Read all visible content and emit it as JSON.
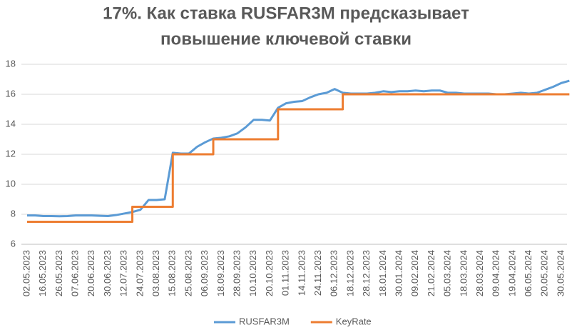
{
  "chart_data": {
    "type": "line",
    "title": [
      "17%. Как ставка RUSFAR3M предсказывает",
      "повышение ключевой ставки"
    ],
    "categories": [
      "02.05.2023",
      null,
      "16.05.2023",
      null,
      "26.05.2023",
      null,
      "07.06.2023",
      null,
      "20.06.2023",
      null,
      "30.06.2023",
      null,
      "12.07.2023",
      null,
      "24.07.2023",
      null,
      "03.08.2023",
      null,
      "15.08.2023",
      null,
      "25.08.2023",
      null,
      "06.09.2023",
      null,
      "18.09.2023",
      null,
      "28.09.2023",
      null,
      "10.10.2023",
      null,
      "20.10.2023",
      null,
      "01.11.2023",
      null,
      "14.11.2023",
      null,
      "24.11.2023",
      null,
      "06.12.2023",
      null,
      "18.12.2023",
      null,
      "28.12.2023",
      null,
      "18.01.2024",
      null,
      "30.01.2024",
      null,
      "09.02.2024",
      null,
      "21.02.2024",
      null,
      "05.03.2024",
      null,
      "18.03.2024",
      null,
      "28.03.2024",
      null,
      "09.04.2024",
      null,
      "19.04.2024",
      null,
      "06.05.2024",
      null,
      "20.05.2024",
      null,
      "30.05.2024",
      null
    ],
    "series": [
      {
        "name": "RUSFAR3M",
        "color": "#5b9bd5",
        "values": [
          7.92,
          7.92,
          7.88,
          7.88,
          7.87,
          7.88,
          7.92,
          7.92,
          7.92,
          7.9,
          7.88,
          7.95,
          8.05,
          8.15,
          8.3,
          8.95,
          8.95,
          9.0,
          12.1,
          12.05,
          12.05,
          12.5,
          12.8,
          13.05,
          13.1,
          13.2,
          13.4,
          13.8,
          14.3,
          14.3,
          14.25,
          15.1,
          15.4,
          15.5,
          15.55,
          15.8,
          16.0,
          16.1,
          16.35,
          16.1,
          16.05,
          16.05,
          16.05,
          16.1,
          16.2,
          16.15,
          16.2,
          16.2,
          16.25,
          16.2,
          16.25,
          16.25,
          16.1,
          16.1,
          16.05,
          16.05,
          16.05,
          16.05,
          16.0,
          16.0,
          16.05,
          16.1,
          16.05,
          16.1,
          16.3,
          16.5,
          16.75,
          16.9
        ]
      },
      {
        "name": "KeyRate",
        "color": "#ed7d31",
        "step": true,
        "values": [
          7.5,
          7.5,
          7.5,
          7.5,
          7.5,
          7.5,
          7.5,
          7.5,
          7.5,
          7.5,
          7.5,
          7.5,
          7.5,
          8.5,
          8.5,
          8.5,
          8.5,
          8.5,
          12,
          12,
          12,
          12,
          12,
          13,
          13,
          13,
          13,
          13,
          13,
          13,
          13,
          15,
          15,
          15,
          15,
          15,
          15,
          15,
          15,
          16,
          16,
          16,
          16,
          16,
          16,
          16,
          16,
          16,
          16,
          16,
          16,
          16,
          16,
          16,
          16,
          16,
          16,
          16,
          16,
          16,
          16,
          16,
          16,
          16,
          16,
          16,
          16,
          16
        ]
      }
    ],
    "ylim": [
      6,
      18
    ],
    "yticks": [
      6,
      8,
      10,
      12,
      14,
      16,
      18
    ],
    "grid": true,
    "legend": "bottom"
  }
}
